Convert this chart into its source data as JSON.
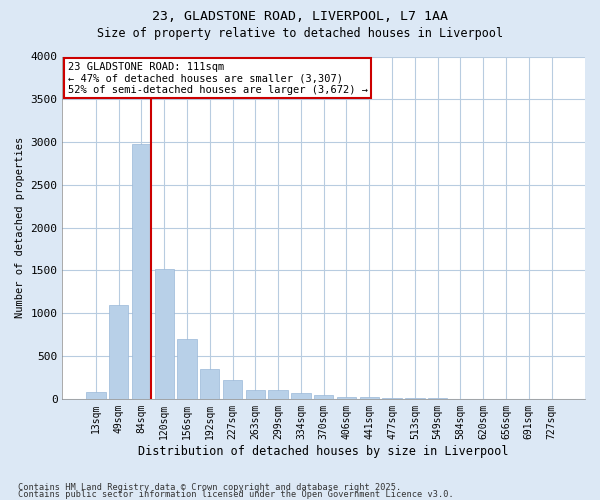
{
  "title1": "23, GLADSTONE ROAD, LIVERPOOL, L7 1AA",
  "title2": "Size of property relative to detached houses in Liverpool",
  "xlabel": "Distribution of detached houses by size in Liverpool",
  "ylabel": "Number of detached properties",
  "categories": [
    "13sqm",
    "49sqm",
    "84sqm",
    "120sqm",
    "156sqm",
    "192sqm",
    "227sqm",
    "263sqm",
    "299sqm",
    "334sqm",
    "370sqm",
    "406sqm",
    "441sqm",
    "477sqm",
    "513sqm",
    "549sqm",
    "584sqm",
    "620sqm",
    "656sqm",
    "691sqm",
    "727sqm"
  ],
  "values": [
    75,
    1100,
    2980,
    1520,
    700,
    350,
    220,
    100,
    100,
    70,
    45,
    25,
    18,
    8,
    5,
    4,
    3,
    2,
    2,
    2,
    2
  ],
  "bar_color": "#b8d0e8",
  "bar_edge_color": "#9ab8d8",
  "vline_x_index": 2,
  "vline_color": "#cc0000",
  "annotation_line1": "23 GLADSTONE ROAD: 111sqm",
  "annotation_line2": "← 47% of detached houses are smaller (3,307)",
  "annotation_line3": "52% of semi-detached houses are larger (3,672) →",
  "annotation_box_color": "#cc0000",
  "ylim": [
    0,
    4000
  ],
  "yticks": [
    0,
    500,
    1000,
    1500,
    2000,
    2500,
    3000,
    3500,
    4000
  ],
  "footnote1": "Contains HM Land Registry data © Crown copyright and database right 2025.",
  "footnote2": "Contains public sector information licensed under the Open Government Licence v3.0.",
  "bg_color": "#dce8f5",
  "plot_bg_color": "#ffffff",
  "grid_color": "#b8cce0"
}
